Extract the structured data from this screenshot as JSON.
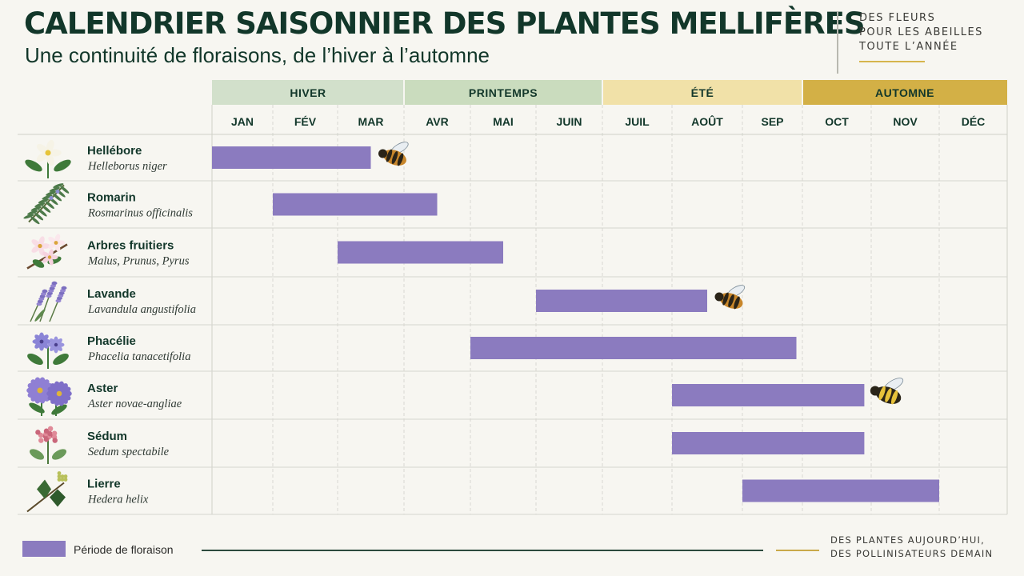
{
  "header": {
    "title": "CALENDRIER SAISONNIER DES PLANTES MELLIFÈRES",
    "subtitle": "Une continuité de floraisons, de l’hiver à l’automne",
    "tagline": [
      "DES FLEURS",
      "POUR LES ABEILLES",
      "TOUTE L’ANNÉE"
    ]
  },
  "footer": {
    "text": [
      "DES PLANTES AUJOURD’HUI,",
      "DES POLLINISATEURS DEMAIN"
    ]
  },
  "colors": {
    "bar": "#8b7bbf",
    "hiver": "#d2e0cb",
    "printemps": "#cadcbe",
    "ete": "#f1e1a8",
    "automne": "#d3b046",
    "text_dark": "#12372a"
  },
  "chart_data": {
    "type": "gantt",
    "x_unit": "mois",
    "seasons": [
      {
        "name": "HIVER",
        "start": 1,
        "end": 3,
        "color": "#d2e0cb"
      },
      {
        "name": "PRINTEMPS",
        "start": 4,
        "end": 6,
        "color": "#cadcbe"
      },
      {
        "name": "ÉTÉ",
        "start": 7,
        "end": 9,
        "color": "#f1e1a8"
      },
      {
        "name": "AUTOMNE",
        "start": 10,
        "end": 12,
        "color": "#d3b046"
      }
    ],
    "months": [
      "JAN",
      "FÉV",
      "MAR",
      "AVR",
      "MAI",
      "JUIN",
      "JUIL",
      "AOÛT",
      "SEP",
      "OCT",
      "NOV",
      "DÉC"
    ],
    "plants": [
      {
        "name": "Hellébore",
        "latin": "Helleborus niger",
        "start": 1,
        "end": 3.5,
        "icon": "hellebore-icon",
        "bee": "bee-icon"
      },
      {
        "name": "Romarin",
        "latin": "Rosmarinus officinalis",
        "start": 2,
        "end": 4.5,
        "icon": "rosemary-icon",
        "bee": ""
      },
      {
        "name": "Arbres fruitiers",
        "latin": "Malus, Prunus, Pyrus",
        "start": 3,
        "end": 5.5,
        "icon": "fruit-blossom-icon",
        "bee": ""
      },
      {
        "name": "Lavande",
        "latin": "Lavandula angustifolia",
        "start": 6,
        "end": 8.5,
        "icon": "lavender-icon",
        "bee": "bee-icon"
      },
      {
        "name": "Phacélie",
        "latin": "Phacelia tanacetifolia",
        "start": 5,
        "end": 9.9,
        "icon": "phacelia-icon",
        "bee": ""
      },
      {
        "name": "Aster",
        "latin": "Aster novae-angliae",
        "start": 8,
        "end": 10.9,
        "icon": "aster-icon",
        "bee": "bumblebee-icon"
      },
      {
        "name": "Sédum",
        "latin": "Sedum spectabile",
        "start": 8,
        "end": 10.9,
        "icon": "sedum-icon",
        "bee": ""
      },
      {
        "name": "Lierre",
        "latin": "Hedera helix",
        "start": 9,
        "end": 12,
        "icon": "ivy-icon",
        "bee": ""
      }
    ],
    "legend": [
      {
        "label": "Période de floraison",
        "color": "#8b7bbf"
      }
    ],
    "legend_position": "bottom-left",
    "grid": true
  }
}
